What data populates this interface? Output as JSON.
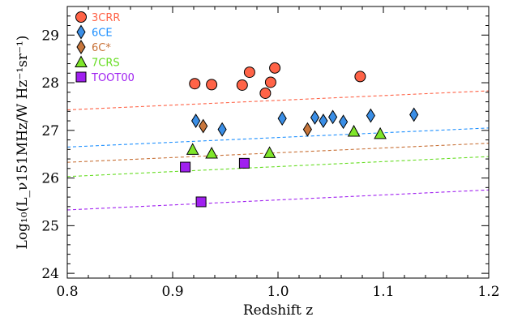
{
  "chart_data": {
    "type": "scatter",
    "xlabel": "Redshift z",
    "ylabel": "Log₁₀(L_ν151MHz/W Hz⁻¹sr⁻¹)",
    "xlim": [
      0.8,
      1.2
    ],
    "ylim": [
      23.9,
      29.6
    ],
    "xticks": [
      "0.8",
      "0.9",
      "1.0",
      "1.1",
      "1.2"
    ],
    "yticks": [
      "24",
      "25",
      "26",
      "27",
      "28",
      "29"
    ],
    "grid": false,
    "legend_position": "top-left",
    "series": [
      {
        "name": "3CRR",
        "marker": "circle",
        "color": "#ff6347",
        "text_color": "#ff6347",
        "points": [
          [
            0.921,
            27.98
          ],
          [
            0.937,
            27.96
          ],
          [
            0.966,
            27.95
          ],
          [
            0.973,
            28.22
          ],
          [
            0.988,
            27.78
          ],
          [
            0.993,
            28.01
          ],
          [
            0.997,
            28.31
          ],
          [
            1.078,
            28.13
          ]
        ]
      },
      {
        "name": "6CE",
        "marker": "diamond",
        "color": "#3a8ee6",
        "text_color": "#1e90ff",
        "points": [
          [
            0.922,
            27.2
          ],
          [
            0.947,
            27.02
          ],
          [
            1.004,
            27.25
          ],
          [
            1.035,
            27.27
          ],
          [
            1.043,
            27.2
          ],
          [
            1.052,
            27.28
          ],
          [
            1.062,
            27.18
          ],
          [
            1.088,
            27.31
          ],
          [
            1.129,
            27.33
          ]
        ]
      },
      {
        "name": "6C*",
        "marker": "diamond",
        "color": "#c8763c",
        "text_color": "#c87137",
        "points": [
          [
            0.929,
            27.09
          ],
          [
            1.028,
            27.02
          ]
        ]
      },
      {
        "name": "7CRS",
        "marker": "triangle",
        "color": "#7fe62a",
        "text_color": "#66dd22",
        "points": [
          [
            0.919,
            26.6
          ],
          [
            0.937,
            26.52
          ],
          [
            0.992,
            26.53
          ],
          [
            1.072,
            26.98
          ],
          [
            1.097,
            26.93
          ]
        ]
      },
      {
        "name": "TOOT00",
        "marker": "square",
        "color": "#a020f0",
        "text_color": "#9f21f0",
        "points": [
          [
            0.912,
            26.23
          ],
          [
            0.927,
            25.5
          ],
          [
            0.968,
            26.31
          ]
        ]
      }
    ],
    "limit_lines": [
      {
        "color": "#ff6347",
        "from": [
          0.8,
          27.43
        ],
        "to": [
          1.2,
          27.83
        ]
      },
      {
        "color": "#1e90ff",
        "from": [
          0.8,
          26.65
        ],
        "to": [
          1.2,
          27.05
        ]
      },
      {
        "color": "#c87137",
        "from": [
          0.8,
          26.33
        ],
        "to": [
          1.2,
          26.73
        ]
      },
      {
        "color": "#66dd22",
        "from": [
          0.8,
          26.03
        ],
        "to": [
          1.2,
          26.45
        ]
      },
      {
        "color": "#a020f0",
        "from": [
          0.8,
          25.33
        ],
        "to": [
          1.2,
          25.75
        ]
      }
    ]
  }
}
